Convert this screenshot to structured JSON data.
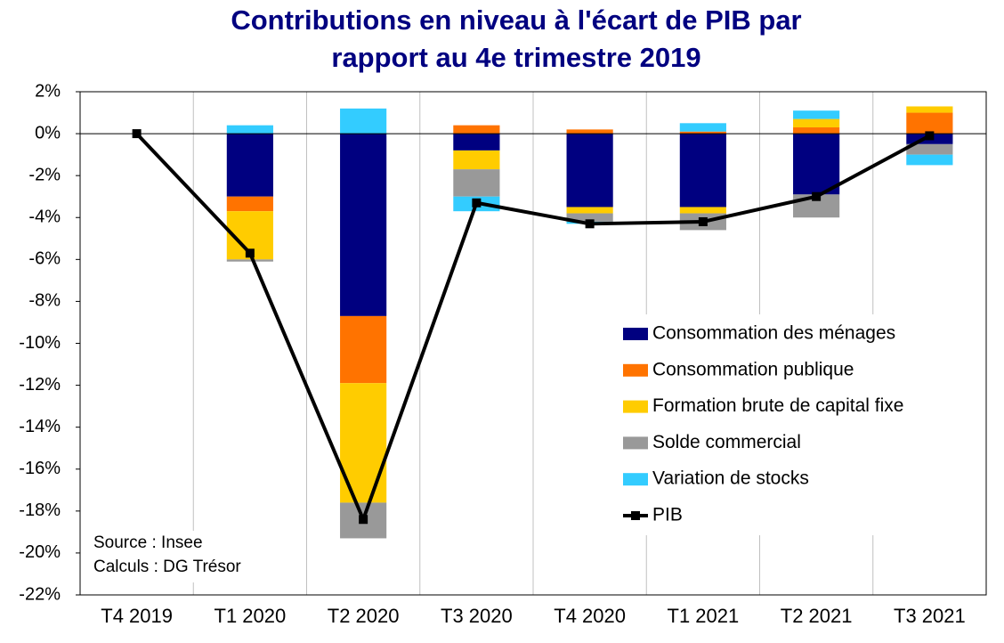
{
  "chart_data": {
    "type": "bar",
    "stacked": true,
    "title": [
      "Contributions en niveau à l'écart de PIB par",
      "rapport au 4e trimestre 2019"
    ],
    "categories": [
      "T4 2019",
      "T1 2020",
      "T2 2020",
      "T3 2020",
      "T4 2020",
      "T1 2021",
      "T2 2021",
      "T3 2021"
    ],
    "series": [
      {
        "name": "Consommation des ménages",
        "color": "#000080",
        "values": [
          0,
          -3.0,
          -8.7,
          -0.8,
          -3.5,
          -3.5,
          -2.9,
          -0.5
        ]
      },
      {
        "name": "Consommation publique",
        "color": "#ff7300",
        "values": [
          0,
          -0.7,
          -3.2,
          0.4,
          0.2,
          0.1,
          0.3,
          1.0
        ]
      },
      {
        "name": "Formation brute de capital fixe",
        "color": "#ffcc00",
        "values": [
          0,
          -2.3,
          -5.7,
          -0.9,
          -0.3,
          -0.3,
          0.4,
          0.3
        ]
      },
      {
        "name": "Solde commercial",
        "color": "#999999",
        "values": [
          0,
          -0.1,
          -1.7,
          -1.3,
          -0.4,
          -0.8,
          -1.1,
          -0.5
        ]
      },
      {
        "name": "Variation de stocks",
        "color": "#33ccff",
        "values": [
          0,
          0.4,
          1.2,
          -0.7,
          -0.1,
          0.4,
          0.4,
          -0.5
        ]
      },
      {
        "name": "PIB",
        "type": "line",
        "color": "#000000",
        "values": [
          0,
          -5.7,
          -18.4,
          -3.3,
          -4.3,
          -4.2,
          -3.0,
          -0.1
        ]
      }
    ],
    "ylim": [
      -22,
      2
    ],
    "yticks": [
      {
        "value": 2,
        "label": "2%"
      },
      {
        "value": 0,
        "label": "0%"
      },
      {
        "value": -2,
        "label": "-2%"
      },
      {
        "value": -4,
        "label": "-4%"
      },
      {
        "value": -6,
        "label": "-6%"
      },
      {
        "value": -8,
        "label": "-8%"
      },
      {
        "value": -10,
        "label": "-10%"
      },
      {
        "value": -12,
        "label": "-12%"
      },
      {
        "value": -14,
        "label": "-14%"
      },
      {
        "value": -16,
        "label": "-16%"
      },
      {
        "value": -18,
        "label": "-18%"
      },
      {
        "value": -20,
        "label": "-20%"
      },
      {
        "value": -22,
        "label": "-22%"
      }
    ],
    "grid": "vertical",
    "legend": "right",
    "annotations": [
      "Source : Insee",
      "Calculs : DG Trésor"
    ]
  }
}
